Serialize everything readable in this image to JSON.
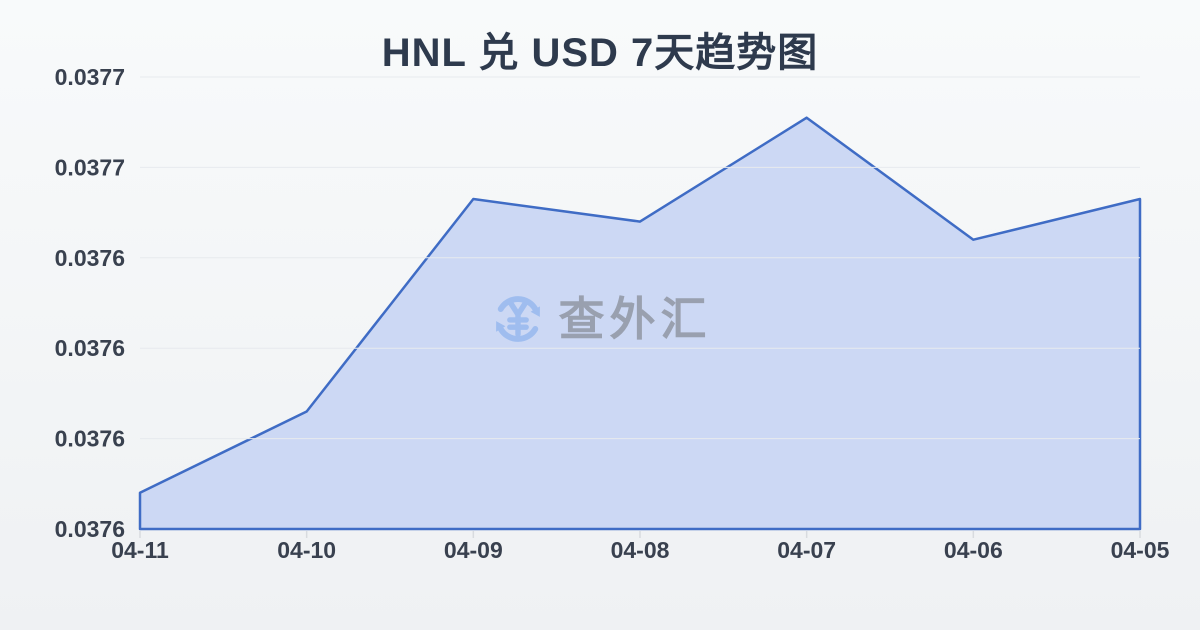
{
  "chart_data": {
    "type": "area",
    "title": "HNL 兑 USD 7天趋势图",
    "categories": [
      "04-11",
      "04-10",
      "04-09",
      "04-08",
      "04-07",
      "04-06",
      "04-05"
    ],
    "series": [
      {
        "values": [
          0.037588,
          0.037606,
          0.037653,
          0.037648,
          0.037671,
          0.037644,
          0.037653
        ]
      }
    ],
    "xlabel": "",
    "ylabel": "",
    "ylim": [
      0.03758,
      0.03768
    ],
    "y_ticks": [
      0.03758,
      0.0376,
      0.03762,
      0.03764,
      0.03766,
      0.03768
    ],
    "y_tick_labels": [
      "0.0376",
      "0.0376",
      "0.0376",
      "0.0376",
      "0.0377",
      "0.0377"
    ],
    "grid": true,
    "legend": false
  },
  "watermark": {
    "text": "查外汇",
    "icon": "currency-exchange-icon"
  },
  "colors": {
    "background_top": "#f8fafb",
    "background_bottom": "#eff1f3",
    "title_text": "#2e3a4d",
    "axis_text": "#39414f",
    "gridline": "#e7eaee",
    "tick": "#d8dbdf",
    "line": "#3f6cc5",
    "area_fill": "#ccd8f4",
    "watermark_text": "#99a0af",
    "watermark_icon": "#9fbdef"
  }
}
